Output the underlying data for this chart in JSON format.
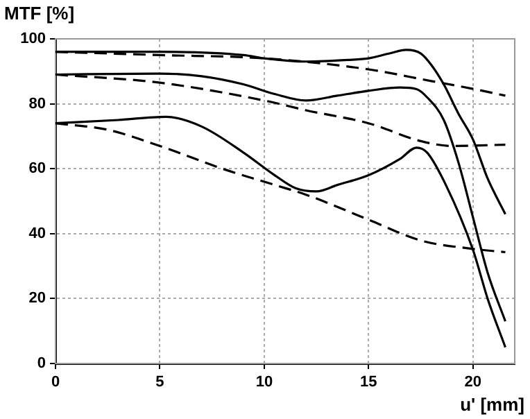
{
  "chart_data": {
    "type": "line",
    "xlabel": "u' [mm]",
    "ylabel": "MTF [%]",
    "xlim": [
      0,
      22
    ],
    "ylim": [
      0,
      100
    ],
    "xticks": [
      0,
      5,
      10,
      15,
      20
    ],
    "yticks": [
      0,
      20,
      40,
      60,
      80,
      100
    ],
    "grid": true,
    "legend": false,
    "marker": "none",
    "series": [
      {
        "color": "#000000",
        "line_style": "solid",
        "x": [
          0,
          5,
          9,
          10,
          12,
          14,
          15,
          16,
          16.8,
          17.5,
          18,
          18.6,
          19.3,
          20,
          20.7,
          21.55
        ],
        "values": [
          96,
          96,
          95,
          94,
          93,
          93.5,
          94,
          95.5,
          96.6,
          95.5,
          92,
          86,
          77,
          69,
          57,
          46
        ]
      },
      {
        "color": "#000000",
        "line_style": "solid",
        "x": [
          0,
          5,
          7,
          9,
          10.5,
          12,
          13.5,
          15,
          16.5,
          17.3,
          17.8,
          18.6,
          19.3,
          20,
          20.7,
          21.55
        ],
        "values": [
          89,
          89.3,
          88.5,
          86,
          83,
          81,
          82.5,
          84,
          85,
          84.5,
          82,
          75,
          62,
          45,
          28,
          13
        ]
      },
      {
        "color": "#000000",
        "line_style": "solid",
        "x": [
          0,
          3,
          5.3,
          7,
          9,
          10.5,
          11.5,
          12.5,
          13.5,
          15,
          16.5,
          17.3,
          17.8,
          18.7,
          20,
          20.7,
          21.55
        ],
        "values": [
          74,
          75,
          76,
          73,
          65,
          58,
          54,
          53,
          55,
          58,
          63,
          66.5,
          65,
          55,
          35,
          20,
          5
        ]
      },
      {
        "color": "#000000",
        "line_style": "dashed",
        "x": [
          0,
          5,
          10,
          15,
          18,
          20,
          21.55
        ],
        "values": [
          96,
          95,
          94,
          90.6,
          87,
          84.6,
          82.5
        ]
      },
      {
        "color": "#000000",
        "line_style": "dashed",
        "x": [
          0,
          5,
          10,
          12,
          15,
          17.5,
          19,
          21.55
        ],
        "values": [
          89,
          86.5,
          81,
          78,
          74,
          68.5,
          67,
          67.4
        ]
      },
      {
        "color": "#000000",
        "line_style": "dashed",
        "x": [
          0,
          2.5,
          5,
          8,
          10.5,
          12,
          15,
          17.5,
          20,
          21.55
        ],
        "values": [
          74,
          72,
          67,
          60,
          55,
          52,
          44.3,
          37.9,
          35.3,
          34.3
        ]
      }
    ]
  }
}
